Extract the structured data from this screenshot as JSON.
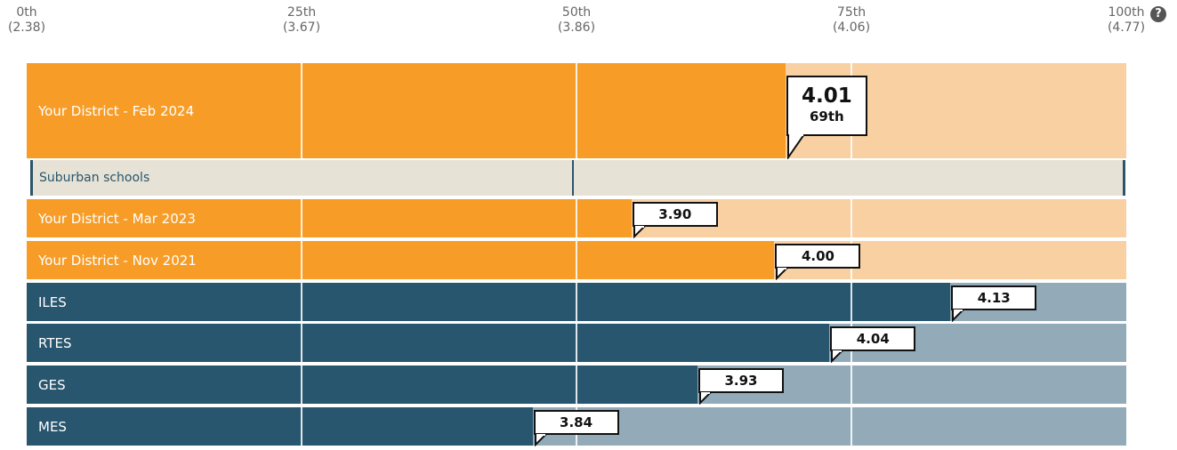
{
  "help_icon": "question-circle-icon",
  "colors": {
    "district_fill": "#f79d27",
    "district_track": "#f9d0a2",
    "school_fill": "#27566e",
    "school_track": "#93abb9",
    "group_bg": "#e6e2d6",
    "group_accent": "#2a556b"
  },
  "chart_data": {
    "type": "bar",
    "orientation": "horizontal",
    "title": "",
    "xlabel": "",
    "ylabel": "",
    "xlim": [
      2.38,
      4.77
    ],
    "percentile_ticks": [
      {
        "percentile": "0th",
        "value": "(2.38)"
      },
      {
        "percentile": "25th",
        "value": "(3.67)"
      },
      {
        "percentile": "50th",
        "value": "(3.86)"
      },
      {
        "percentile": "75th",
        "value": "(4.06)"
      },
      {
        "percentile": "100th",
        "value": "(4.77)"
      }
    ],
    "rows": [
      {
        "label": "Your District - Feb 2024",
        "value": 4.01,
        "value_label": "4.01",
        "percentile": "69th",
        "percentile_value": 69,
        "group": "district",
        "highlight": true
      },
      {
        "label": "Your District - Mar 2023",
        "value": 3.9,
        "value_label": "3.90",
        "percentile_value": 55,
        "group": "district"
      },
      {
        "label": "Your District - Nov 2021",
        "value": 4.0,
        "value_label": "4.00",
        "percentile_value": 68,
        "group": "district"
      },
      {
        "label": "ILES",
        "value": 4.13,
        "value_label": "4.13",
        "percentile_value": 84,
        "group": "school"
      },
      {
        "label": "RTES",
        "value": 4.04,
        "value_label": "4.04",
        "percentile_value": 73,
        "group": "school"
      },
      {
        "label": "GES",
        "value": 3.93,
        "value_label": "3.93",
        "percentile_value": 61,
        "group": "school"
      },
      {
        "label": "MES",
        "value": 3.84,
        "value_label": "3.84",
        "percentile_value": 46,
        "group": "school"
      }
    ],
    "comparison_group": {
      "label": "Suburban schools",
      "median_percentile": 50
    }
  }
}
